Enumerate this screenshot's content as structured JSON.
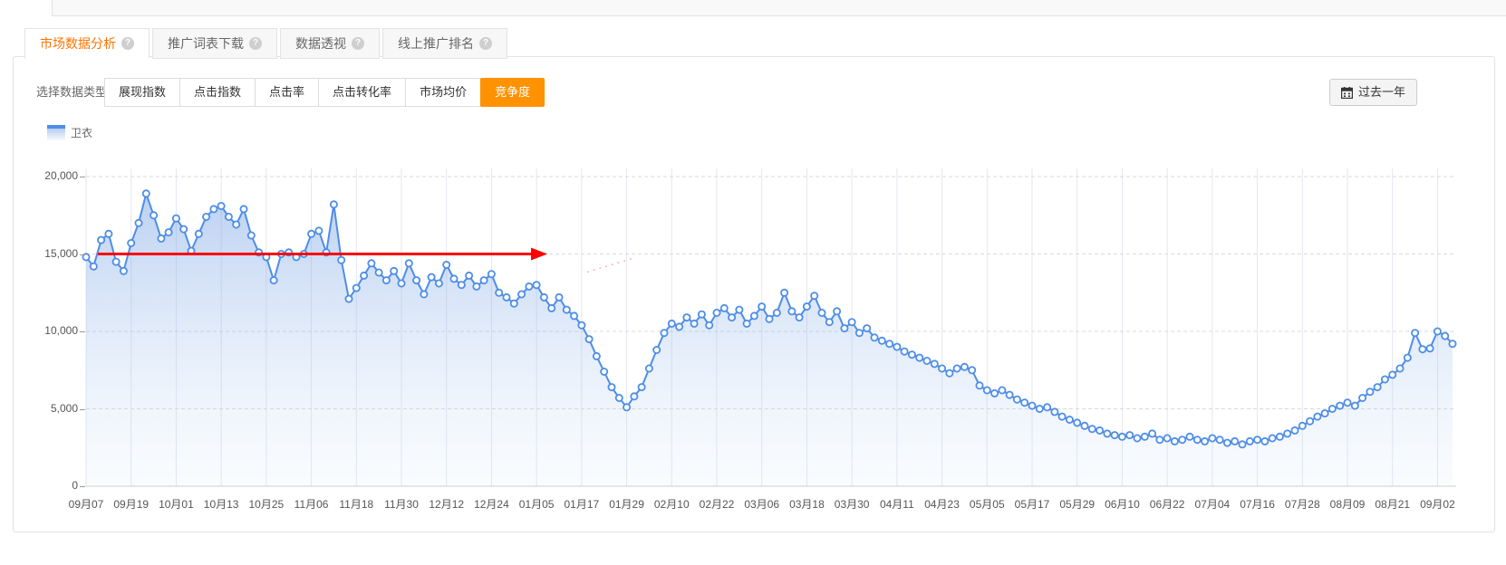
{
  "icons": {
    "help": "?"
  },
  "tabs": [
    {
      "label": "市场数据分析",
      "active": true
    },
    {
      "label": "推广词表下载",
      "active": false
    },
    {
      "label": "数据透视",
      "active": false
    },
    {
      "label": "线上推广排名",
      "active": false
    }
  ],
  "controls": {
    "label": "选择数据类型：",
    "buttons": [
      {
        "label": "展现指数",
        "selected": false
      },
      {
        "label": "点击指数",
        "selected": false
      },
      {
        "label": "点击率",
        "selected": false
      },
      {
        "label": "点击转化率",
        "selected": false
      },
      {
        "label": "市场均价",
        "selected": false
      },
      {
        "label": "竞争度",
        "selected": true
      }
    ],
    "selected_color": "#ff9200",
    "range_button": "过去一年"
  },
  "legend": {
    "label": "卫衣",
    "color": "#4e8de8"
  },
  "chart_data": {
    "type": "line",
    "series_name": "卫衣",
    "sampling": "daily series, values estimated at ~2-day intervals",
    "x_tick_labels": [
      "09月07",
      "09月19",
      "10月01",
      "10月13",
      "10月25",
      "11月06",
      "11月18",
      "11月30",
      "12月12",
      "12月24",
      "01月05",
      "01月17",
      "01月29",
      "02月10",
      "02月22",
      "03月06",
      "03月18",
      "03月30",
      "04月11",
      "04月23",
      "05月05",
      "05月17",
      "05月29",
      "06月10",
      "06月22",
      "07月04",
      "07月16",
      "07月28",
      "08月09",
      "08月21",
      "09月02"
    ],
    "values": [
      14800,
      14200,
      15900,
      16300,
      14500,
      13900,
      15700,
      17000,
      18900,
      17500,
      16000,
      16400,
      17300,
      16600,
      15200,
      16300,
      17400,
      17900,
      18100,
      17400,
      16900,
      17900,
      16200,
      15100,
      14800,
      13300,
      15000,
      15100,
      14800,
      15000,
      16300,
      16500,
      15100,
      18200,
      14600,
      12100,
      12800,
      13600,
      14400,
      13800,
      13300,
      13900,
      13100,
      14400,
      13300,
      12400,
      13500,
      13100,
      14300,
      13400,
      13000,
      13600,
      12900,
      13300,
      13700,
      12500,
      12200,
      11800,
      12400,
      12900,
      13000,
      12200,
      11500,
      12200,
      11400,
      11000,
      10400,
      9500,
      8400,
      7400,
      6400,
      5700,
      5100,
      5800,
      6400,
      7600,
      8800,
      9900,
      10500,
      10300,
      10900,
      10500,
      11100,
      10400,
      11200,
      11500,
      10900,
      11400,
      10500,
      11000,
      11600,
      10800,
      11200,
      12500,
      11300,
      10900,
      11600,
      12300,
      11200,
      10600,
      11300,
      10200,
      10600,
      9900,
      10200,
      9600,
      9400,
      9200,
      9000,
      8700,
      8500,
      8300,
      8100,
      7900,
      7600,
      7300,
      7600,
      7700,
      7500,
      6500,
      6200,
      6000,
      6200,
      5900,
      5600,
      5400,
      5200,
      5000,
      5100,
      4800,
      4500,
      4300,
      4100,
      3900,
      3700,
      3600,
      3400,
      3300,
      3200,
      3300,
      3100,
      3200,
      3400,
      3000,
      3100,
      2900,
      3000,
      3200,
      3000,
      2900,
      3100,
      3000,
      2800,
      2900,
      2700,
      2900,
      3000,
      2900,
      3100,
      3200,
      3400,
      3600,
      3900,
      4200,
      4500,
      4700,
      5000,
      5200,
      5400,
      5200,
      5700,
      6100,
      6400,
      6900,
      7200,
      7600,
      8300,
      9900,
      8850,
      8900,
      10000,
      9700,
      9200
    ],
    "ylim": [
      0,
      20000
    ],
    "y_ticks": [
      {
        "label": "0",
        "value": 0
      },
      {
        "label": "5,000",
        "value": 5000
      },
      {
        "label": "10,000",
        "value": 10000
      },
      {
        "label": "15,000",
        "value": 15000
      },
      {
        "label": "20,000",
        "value": 20000
      }
    ],
    "line_color": "#4e8de8",
    "marker": "open-circle",
    "area": true,
    "grid": "vertical solid, horizontal dashed",
    "legend_position": "top-left",
    "annotation": {
      "type": "horizontal-arrow",
      "value": 15000,
      "x_start_label": "09月10",
      "x_end_label": "01月06",
      "color": "#ff0000"
    }
  }
}
